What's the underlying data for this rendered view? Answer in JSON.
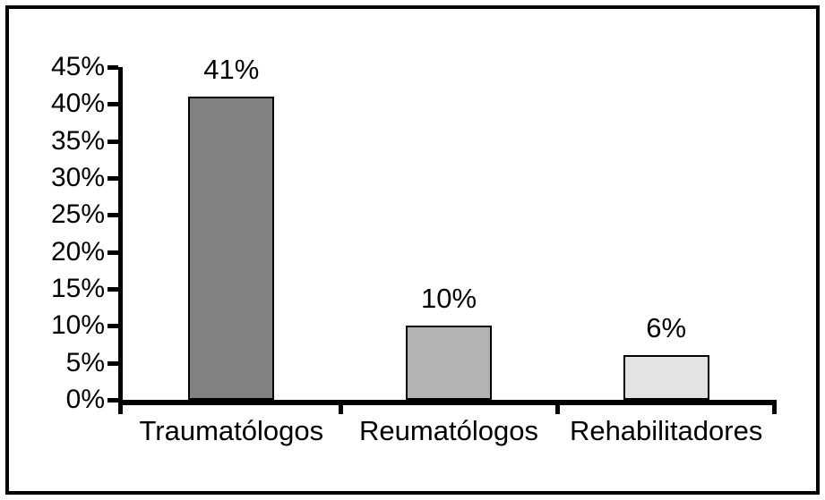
{
  "chart_data": {
    "type": "bar",
    "title": "",
    "categories": [
      "Traumatólogos",
      "Reumatólogos",
      "Rehabilitadores"
    ],
    "values": [
      41,
      10,
      6
    ],
    "data_labels": [
      "41%",
      "10%",
      "6%"
    ],
    "bar_colors": [
      "#818181",
      "#b3b3b3",
      "#e3e3e3"
    ],
    "bar_border_color": "#000000",
    "xlabel": "",
    "ylabel": "",
    "ylim": [
      0,
      45
    ],
    "ytick_step": 5,
    "ytick_labels": [
      "0%",
      "5%",
      "10%",
      "15%",
      "20%",
      "25%",
      "30%",
      "35%",
      "40%",
      "45%"
    ],
    "grid": false,
    "legend": false,
    "axis_color": "#000000",
    "frame_border_color": "#000000",
    "background_color": "#ffffff"
  }
}
